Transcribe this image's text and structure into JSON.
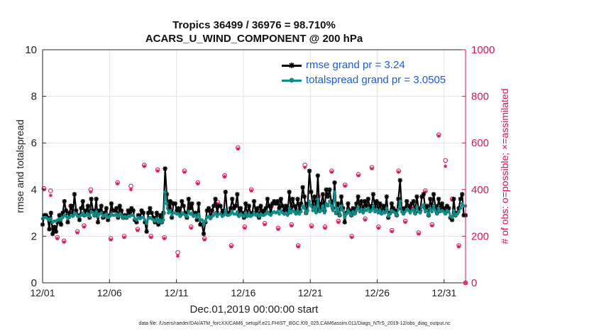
{
  "title_line1": "Tropics 36499 / 36976 = 98.710%",
  "title_line2": "ACARS_U_WIND_COMPONENT @ 200 hPa",
  "footer": "data file: /Users/raeder/DAI/ATM_forcXX/CAM6_setup/f.e21.FHIST_BGC.f09_025.CAM6assim.011/Diags_NTrS_2019-12/obs_diag_output.nc",
  "colors": {
    "rmse": "#000000",
    "spread": "#0e8c87",
    "obs": "#d6125c",
    "legend_text": "#1f5bd6"
  },
  "chart_data": {
    "type": "line",
    "title": "Tropics 36499 / 36976 = 98.710%  ACARS_U_WIND_COMPONENT @ 200 hPa",
    "xlabel": "Dec.01,2019 00:00:00 start",
    "ylabel": "rmse and totalspread",
    "y2label": "# of obs: o=possible; ×=assimilated",
    "xlim": [
      0,
      31.6
    ],
    "ylim": [
      0,
      10
    ],
    "y2lim": [
      0,
      1000
    ],
    "xticks": [
      0,
      5,
      10,
      15,
      20,
      25,
      30
    ],
    "xticklabels": [
      "12/01",
      "12/06",
      "12/11",
      "12/16",
      "12/21",
      "12/26",
      "12/31"
    ],
    "yticks": [
      0,
      2,
      4,
      6,
      8,
      10
    ],
    "y2ticks": [
      0,
      200,
      400,
      600,
      800,
      1000
    ],
    "grid": true,
    "legend_position": "top-right",
    "series": [
      {
        "name": "rmse grand pr = 3.24",
        "axis": "left",
        "values": [
          2.5,
          2.9,
          2.9,
          2.8,
          2.3,
          3.0,
          2.1,
          2.4,
          2.2,
          2.6,
          2.9,
          2.5,
          3.0,
          3.5,
          3.1,
          2.6,
          3.0,
          3.3,
          2.9,
          3.8,
          3.1,
          2.9,
          2.7,
          3.2,
          3.5,
          2.9,
          3.1,
          3.3,
          2.8,
          3.6,
          3.1,
          2.9,
          3.6,
          2.6,
          3.1,
          3.3,
          2.8,
          3.0,
          3.2,
          2.7,
          2.9,
          3.4,
          3.1,
          3.1,
          3.2,
          2.8,
          3.3,
          3.1,
          2.8,
          2.9,
          2.8,
          3.1,
          3.0,
          3.2,
          3.1,
          2.7,
          2.6,
          2.9,
          2.8,
          3.1,
          3.0,
          2.6,
          2.2,
          3.0,
          3.2,
          3.0,
          2.8,
          2.6,
          3.0,
          2.5,
          2.9,
          2.6,
          3.0,
          4.9,
          3.8,
          3.2,
          3.5,
          2.8,
          3.4,
          3.4,
          3.1,
          3.2,
          2.9,
          3.5,
          3.3,
          3.0,
          2.8,
          3.6,
          3.2,
          3.4,
          2.9,
          3.0,
          2.7,
          3.4,
          2.5,
          2.5,
          2.1,
          2.6,
          3.1,
          3.2,
          2.8,
          3.1,
          3.3,
          3.6,
          3.0,
          3.3,
          3.3,
          3.0,
          3.1,
          3.9,
          3.0,
          3.0,
          3.2,
          3.6,
          3.2,
          3.3,
          3.8,
          2.9,
          3.2,
          3.0,
          2.8,
          3.4,
          2.9,
          3.3,
          2.9,
          3.0,
          3.5,
          3.0,
          3.2,
          2.8,
          3.3,
          3.0,
          3.1,
          3.2,
          3.6,
          3.3,
          3.0,
          3.4,
          3.5,
          3.4,
          3.5,
          3.2,
          3.6,
          3.3,
          3.1,
          3.3,
          3.0,
          3.9,
          3.2,
          3.6,
          3.3,
          3.0,
          3.6,
          3.1,
          3.4,
          4.1,
          3.7,
          3.0,
          3.4,
          4.8,
          3.9,
          3.3,
          3.7,
          3.1,
          4.6,
          3.2,
          3.4,
          3.8,
          3.1,
          4.0,
          3.7,
          4.0,
          3.5,
          3.2,
          4.3,
          3.0,
          3.4,
          2.9,
          3.7,
          3.2,
          2.6,
          3.0,
          3.4,
          3.1,
          2.9,
          3.2,
          3.0,
          3.4,
          3.7,
          3.2,
          3.5,
          3.1,
          3.5,
          3.3,
          3.6,
          3.2,
          3.3,
          3.8,
          3.2,
          3.5,
          3.1,
          3.4,
          3.0,
          3.3,
          3.1,
          3.7,
          2.8,
          3.0,
          3.4,
          3.2,
          3.1,
          2.9,
          3.6,
          4.4,
          3.2,
          3.0,
          3.2,
          3.5,
          3.3,
          3.1,
          3.4,
          3.5,
          3.0,
          3.7,
          3.2,
          3.1,
          3.7,
          3.8,
          3.2,
          3.3,
          2.9,
          3.6,
          3.2,
          3.8,
          3.3,
          3.0,
          3.6,
          3.2,
          3.4,
          3.2,
          3.0,
          3.3,
          3.2,
          2.8,
          2.7,
          3.6,
          2.9,
          3.0,
          3.2,
          3.6,
          3.8,
          2.9,
          2.9
        ]
      },
      {
        "name": "totalspread grand pr = 3.0505",
        "axis": "left",
        "values": [
          2.75,
          2.8,
          2.8,
          2.75,
          2.7,
          2.75,
          2.6,
          2.65,
          2.65,
          2.7,
          2.75,
          2.7,
          2.8,
          2.9,
          2.85,
          2.75,
          2.8,
          2.9,
          2.85,
          3.0,
          2.95,
          2.85,
          2.85,
          2.9,
          3.0,
          2.9,
          2.9,
          2.95,
          2.85,
          3.05,
          3.0,
          2.9,
          3.05,
          2.85,
          2.95,
          3.0,
          2.85,
          2.9,
          2.95,
          2.8,
          2.85,
          2.95,
          2.9,
          2.9,
          2.95,
          2.85,
          2.95,
          2.9,
          2.8,
          2.85,
          2.8,
          2.85,
          2.85,
          2.9,
          2.9,
          2.75,
          2.7,
          2.8,
          2.75,
          2.8,
          2.8,
          2.7,
          2.55,
          2.75,
          2.8,
          2.75,
          2.7,
          2.65,
          2.75,
          2.6,
          2.7,
          2.6,
          2.7,
          3.9,
          3.4,
          3.0,
          3.1,
          2.9,
          3.0,
          3.0,
          2.95,
          2.95,
          2.85,
          3.0,
          2.95,
          2.9,
          2.85,
          3.05,
          2.95,
          3.0,
          2.85,
          2.9,
          2.8,
          2.95,
          2.7,
          2.7,
          2.5,
          2.65,
          2.8,
          2.85,
          2.75,
          2.85,
          2.9,
          3.0,
          2.85,
          2.95,
          2.95,
          2.85,
          2.9,
          3.1,
          2.9,
          2.9,
          2.95,
          3.05,
          2.95,
          2.95,
          3.05,
          2.85,
          2.95,
          2.9,
          2.85,
          3.0,
          2.85,
          2.95,
          2.85,
          2.9,
          3.0,
          2.9,
          2.95,
          2.85,
          2.95,
          2.9,
          2.9,
          2.95,
          3.05,
          2.95,
          2.9,
          3.0,
          3.05,
          3.0,
          3.05,
          2.95,
          3.1,
          3.0,
          2.95,
          3.0,
          2.9,
          3.2,
          3.0,
          3.1,
          3.05,
          2.95,
          3.1,
          2.95,
          3.05,
          3.3,
          3.2,
          3.0,
          3.1,
          3.5,
          3.3,
          3.1,
          3.25,
          3.0,
          3.6,
          3.05,
          3.1,
          3.3,
          3.0,
          3.4,
          3.3,
          3.5,
          3.3,
          3.1,
          3.9,
          3.0,
          3.2,
          2.9,
          3.3,
          3.1,
          2.8,
          2.95,
          3.1,
          3.0,
          2.9,
          3.05,
          2.95,
          3.1,
          3.25,
          3.05,
          3.15,
          3.0,
          3.15,
          3.1,
          3.2,
          3.05,
          3.1,
          3.3,
          3.05,
          3.15,
          3.0,
          3.1,
          2.95,
          3.05,
          3.0,
          3.2,
          2.85,
          2.95,
          3.1,
          3.05,
          3.0,
          2.9,
          3.15,
          3.5,
          3.05,
          2.95,
          3.05,
          3.15,
          3.1,
          3.0,
          3.1,
          3.15,
          2.95,
          3.25,
          3.05,
          3.0,
          3.25,
          3.35,
          3.05,
          3.1,
          2.9,
          3.2,
          3.05,
          3.3,
          3.1,
          2.95,
          3.2,
          3.05,
          3.1,
          3.05,
          2.95,
          3.1,
          3.05,
          2.85,
          2.8,
          3.1,
          2.9,
          2.95,
          3.05,
          3.2,
          3.4,
          3.3,
          3.3
        ]
      },
      {
        "name": "# of obs possible",
        "axis": "right",
        "marker": "o",
        "x": [
          0.1,
          0.6,
          1.1,
          1.6,
          2.1,
          2.6,
          3.1,
          3.6,
          4.1,
          4.6,
          5.1,
          5.6,
          6.1,
          6.6,
          7.1,
          7.6,
          8.1,
          8.6,
          9.1,
          9.6,
          10.1,
          10.6,
          11.1,
          11.6,
          12.1,
          12.6,
          13.1,
          13.6,
          14.1,
          14.6,
          15.1,
          15.6,
          16.1,
          16.6,
          17.1,
          17.6,
          18.1,
          18.6,
          19.1,
          19.6,
          20.1,
          20.6,
          21.1,
          21.6,
          22.1,
          22.6,
          23.1,
          23.6,
          24.1,
          24.6,
          25.1,
          25.6,
          26.1,
          26.6,
          27.1,
          27.6,
          28.1,
          28.6,
          29.1,
          29.6,
          30.1,
          30.6,
          31.1,
          31.6
        ],
        "values": [
          405,
          395,
          195,
          180,
          330,
          220,
          245,
          400,
          290,
          285,
          190,
          430,
          200,
          415,
          230,
          505,
          200,
          485,
          195,
          345,
          130,
          480,
          240,
          430,
          190,
          300,
          345,
          460,
          160,
          580,
          240,
          400,
          290,
          255,
          330,
          235,
          300,
          250,
          160,
          505,
          245,
          370,
          240,
          480,
          265,
          420,
          200,
          465,
          275,
          495,
          240,
          325,
          225,
          480,
          265,
          330,
          215,
          395,
          250,
          635,
          525,
          360,
          160,
          0
        ]
      },
      {
        "name": "# of obs assimilated",
        "axis": "right",
        "marker": "x",
        "x": [
          0.1,
          0.6,
          1.1,
          1.6,
          2.1,
          2.6,
          3.1,
          3.6,
          4.1,
          4.6,
          5.1,
          5.6,
          6.1,
          6.6,
          7.1,
          7.6,
          8.1,
          8.6,
          9.1,
          9.6,
          10.1,
          10.6,
          11.1,
          11.6,
          12.1,
          12.6,
          13.1,
          13.6,
          14.1,
          14.6,
          15.1,
          15.6,
          16.1,
          16.6,
          17.1,
          17.6,
          18.1,
          18.6,
          19.1,
          19.6,
          20.1,
          20.6,
          21.1,
          21.6,
          22.1,
          22.6,
          23.1,
          23.6,
          24.1,
          24.6,
          25.1,
          25.6,
          26.1,
          26.6,
          27.1,
          27.6,
          28.1,
          28.6,
          29.1,
          29.6,
          30.1,
          30.6,
          31.1,
          31.6
        ],
        "values": [
          400,
          375,
          190,
          175,
          325,
          215,
          240,
          390,
          285,
          280,
          185,
          425,
          195,
          400,
          225,
          500,
          195,
          480,
          190,
          340,
          115,
          475,
          235,
          425,
          185,
          295,
          340,
          455,
          155,
          575,
          235,
          395,
          285,
          250,
          325,
          230,
          295,
          245,
          155,
          495,
          240,
          365,
          235,
          475,
          260,
          415,
          195,
          460,
          270,
          490,
          235,
          320,
          220,
          475,
          260,
          325,
          210,
          390,
          245,
          630,
          500,
          355,
          155,
          0
        ]
      }
    ]
  }
}
